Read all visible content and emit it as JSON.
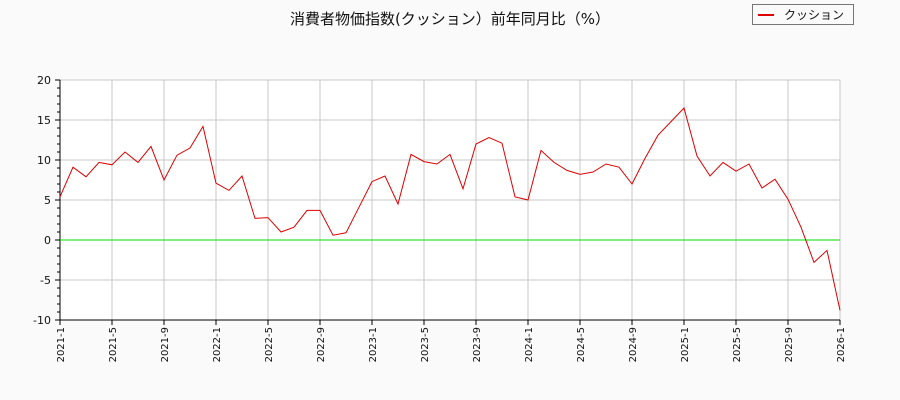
{
  "chart_data": {
    "type": "line",
    "title": "消費者物価指数(クッション）前年同月比（%）",
    "xlabel": "",
    "ylabel": "",
    "ylim": [
      -10,
      20
    ],
    "yticks": [
      -10,
      -5,
      0,
      5,
      10,
      15,
      20
    ],
    "grid": true,
    "legend_position": "top-right",
    "x_tick_labels": [
      "2021-1",
      "2021-5",
      "2021-9",
      "2022-1",
      "2022-5",
      "2022-9",
      "2023-1",
      "2023-5",
      "2023-9",
      "2024-1",
      "2024-5",
      "2024-9",
      "2025-1",
      "2025-5",
      "2025-9",
      "2026-1"
    ],
    "x": [
      "2021-1",
      "2021-2",
      "2021-3",
      "2021-4",
      "2021-5",
      "2021-6",
      "2021-7",
      "2021-8",
      "2021-9",
      "2021-10",
      "2021-11",
      "2021-12",
      "2022-1",
      "2022-2",
      "2022-3",
      "2022-4",
      "2022-5",
      "2022-6",
      "2022-7",
      "2022-8",
      "2022-9",
      "2022-10",
      "2022-11",
      "2022-12",
      "2023-1",
      "2023-2",
      "2023-3",
      "2023-4",
      "2023-5",
      "2023-6",
      "2023-7",
      "2023-8",
      "2023-9",
      "2023-10",
      "2023-11",
      "2023-12",
      "2024-1",
      "2024-2",
      "2024-3",
      "2024-4",
      "2024-5",
      "2024-6",
      "2024-7",
      "2024-8",
      "2024-9",
      "2024-10",
      "2024-11",
      "2024-12",
      "2025-1",
      "2025-2",
      "2025-3",
      "2025-4",
      "2025-5",
      "2025-6",
      "2025-7",
      "2025-8",
      "2025-9",
      "2025-10",
      "2025-11",
      "2025-12",
      "2026-1"
    ],
    "series": [
      {
        "name": "クッション",
        "color": "#dd0000",
        "values": [
          5.4,
          9.1,
          7.9,
          9.7,
          9.4,
          11.0,
          9.7,
          11.7,
          7.5,
          10.6,
          11.5,
          14.2,
          7.1,
          6.2,
          8.0,
          2.7,
          2.8,
          1.0,
          1.6,
          3.7,
          3.7,
          0.6,
          0.9,
          4.1,
          7.3,
          8.0,
          4.5,
          10.7,
          9.8,
          9.5,
          10.7,
          6.4,
          12.0,
          12.8,
          12.1,
          5.4,
          5.0,
          11.2,
          9.7,
          8.7,
          8.2,
          8.5,
          9.5,
          9.1,
          7.0,
          10.2,
          13.1,
          14.8,
          16.5,
          10.5,
          8.0,
          9.7,
          8.6,
          9.5,
          6.5,
          7.6,
          5.1,
          1.6,
          -2.8,
          -1.3,
          -8.8
        ]
      }
    ],
    "reference_line": {
      "y": 0,
      "color": "#00dd00"
    }
  },
  "legend": {
    "label": "クッション",
    "color": "#dd0000"
  },
  "colors": {
    "background": "#fafafa",
    "plot_background": "#ffffff",
    "grid": "#c8c8c8",
    "axis": "#000000"
  }
}
